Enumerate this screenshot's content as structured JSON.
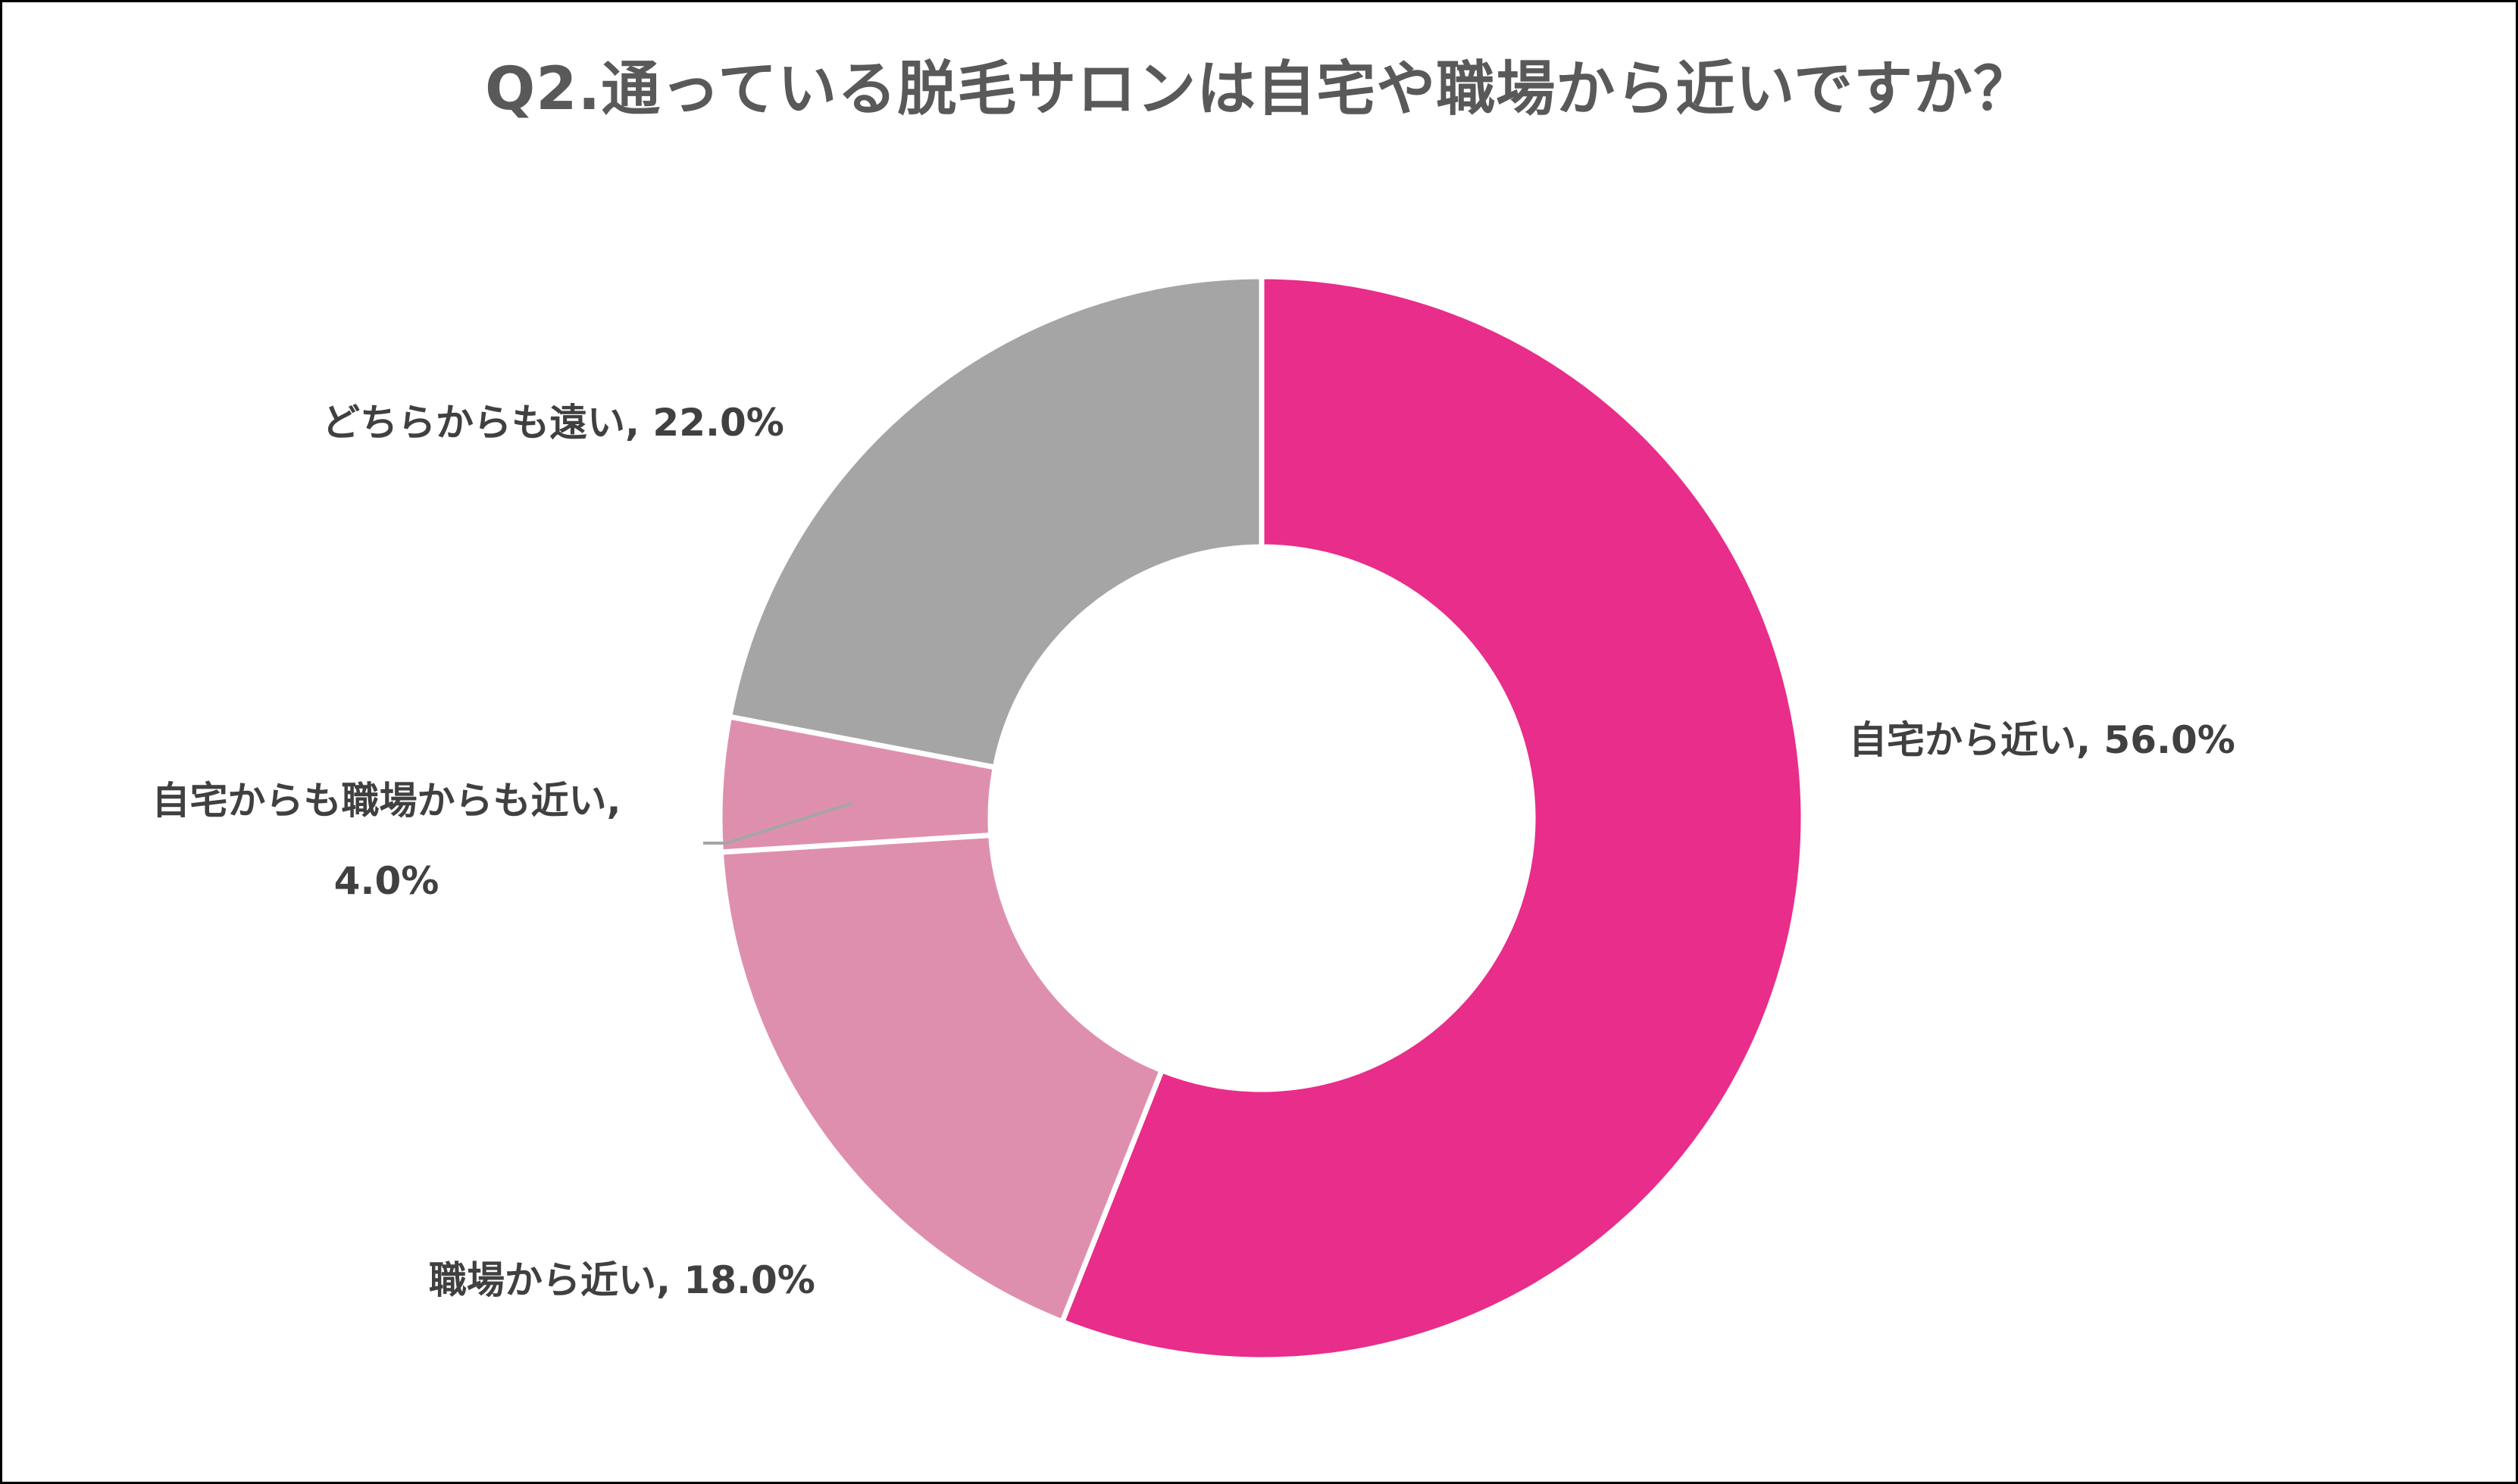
{
  "chart_data": {
    "type": "pie",
    "subtype": "donut",
    "title": "Q2.通っている脱毛サロンは自宅や職場から近いですか？",
    "categories": [
      "自宅から近い",
      "職場から近い",
      "自宅からも職場からも近い",
      "どちらからも遠い"
    ],
    "values": [
      56.0,
      18.0,
      4.0,
      22.0
    ],
    "unit": "%",
    "colors": [
      "#E82D8A",
      "#DF8FAE",
      "#DF8FAE",
      "#A5A5A5"
    ],
    "start_angle_deg": 0,
    "direction": "clockwise",
    "legend": "none",
    "data_labels": [
      "自宅から近い, 56.0%",
      "職場から近い, 18.0%",
      "自宅からも職場からも近い, 4.0%",
      "どちらからも遠い, 22.0%"
    ]
  },
  "title": "Q2.通っている脱毛サロンは自宅や職場から近いですか？",
  "labels": {
    "home_near": "自宅から近い, 56.0%",
    "work_near": "職場から近い, 18.0%",
    "both_near_line1": "自宅からも職場からも近い,",
    "both_near_line2": "4.0%",
    "both_far": "どちらからも遠い, 22.0%"
  },
  "colors": {
    "title": "#595959",
    "label": "#404040",
    "leader_line": "#A5A5A5",
    "border": "#000000"
  }
}
